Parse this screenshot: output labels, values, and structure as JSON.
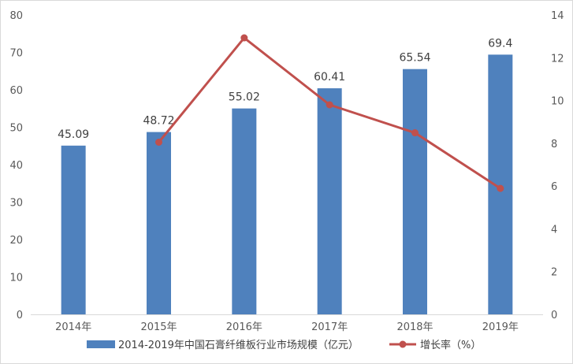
{
  "chart_data": {
    "type": "bar",
    "categories": [
      "2014年",
      "2015年",
      "2016年",
      "2017年",
      "2018年",
      "2019年"
    ],
    "series": [
      {
        "name": "2014-2019年中国石膏纤维板行业市场规模（亿元）",
        "type": "bar",
        "axis": "left",
        "color": "#4f81bd",
        "values": [
          45.09,
          48.72,
          55.02,
          60.41,
          65.54,
          69.4
        ],
        "data_labels": [
          "45.09",
          "48.72",
          "55.02",
          "60.41",
          "65.54",
          "69.4"
        ]
      },
      {
        "name": "增长率（%）",
        "type": "line",
        "axis": "right",
        "color": "#c0504d",
        "values": [
          null,
          8.05,
          12.93,
          9.8,
          8.49,
          5.89
        ]
      }
    ],
    "y_left": {
      "ylim": [
        0,
        80
      ],
      "ticks": [
        0,
        10,
        20,
        30,
        40,
        50,
        60,
        70,
        80
      ]
    },
    "y_right": {
      "ylim": [
        0,
        14
      ],
      "ticks": [
        0,
        2,
        4,
        6,
        8,
        10,
        12,
        14
      ]
    },
    "grid": false,
    "legend_position": "bottom"
  }
}
